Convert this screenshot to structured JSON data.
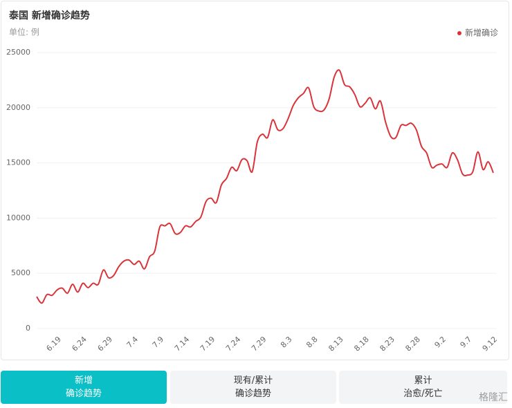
{
  "chart_data": {
    "type": "line",
    "title": "泰国 新增确诊趋势",
    "subtitle": "单位: 例",
    "categories": [
      null,
      null,
      null,
      null,
      "6.19",
      null,
      null,
      null,
      null,
      "6.24",
      null,
      null,
      null,
      null,
      "6.29",
      null,
      null,
      null,
      null,
      "7.4",
      null,
      null,
      null,
      null,
      "7.9",
      null,
      null,
      null,
      null,
      "7.14",
      null,
      null,
      null,
      null,
      "7.19",
      null,
      null,
      null,
      null,
      "7.24",
      null,
      null,
      null,
      null,
      "7.29",
      null,
      null,
      null,
      null,
      "8.3",
      null,
      null,
      null,
      null,
      "8.8",
      null,
      null,
      null,
      null,
      "8.13",
      null,
      null,
      null,
      null,
      "8.18",
      null,
      null,
      null,
      null,
      "8.23",
      null,
      null,
      null,
      null,
      "8.28",
      null,
      null,
      null,
      null,
      "9.2",
      null,
      null,
      null,
      null,
      "9.7",
      null,
      null,
      null,
      null,
      "9.12"
    ],
    "series": [
      {
        "name": "新增确诊",
        "color": "#d9333a",
        "values": [
          2880,
          2300,
          3070,
          3000,
          3500,
          3650,
          3200,
          4000,
          3300,
          4100,
          3700,
          4100,
          4000,
          5300,
          4600,
          4800,
          5600,
          6100,
          6200,
          5800,
          6100,
          5400,
          6500,
          7000,
          9200,
          9300,
          9500,
          8600,
          8700,
          9300,
          9200,
          9700,
          10100,
          11500,
          11800,
          11400,
          13000,
          13600,
          14600,
          14300,
          15300,
          15200,
          14200,
          16900,
          17600,
          17300,
          18900,
          18000,
          18100,
          19000,
          20200,
          20900,
          21300,
          21800,
          20100,
          19700,
          19800,
          20800,
          22800,
          23400,
          22100,
          21900,
          21200,
          20100,
          20400,
          20900,
          19900,
          20600,
          18700,
          17400,
          17300,
          18400,
          18400,
          18600,
          18000,
          16500,
          15900,
          14600,
          14800,
          14900,
          14600,
          15900,
          15300,
          14000,
          13900,
          14200,
          16000,
          14400,
          15100,
          14100
        ]
      }
    ],
    "ylim": [
      0,
      25000
    ],
    "yticks": [
      0,
      5000,
      10000,
      15000,
      20000,
      25000
    ],
    "grid": true,
    "legend": "top-right"
  },
  "tabs": [
    {
      "line1": "新增",
      "line2": "确诊趋势",
      "active": true
    },
    {
      "line1": "现有/累计",
      "line2": "确诊趋势",
      "active": false
    },
    {
      "line1": "累计",
      "line2": "治愈/死亡",
      "active": false
    }
  ],
  "watermark": "格隆汇"
}
